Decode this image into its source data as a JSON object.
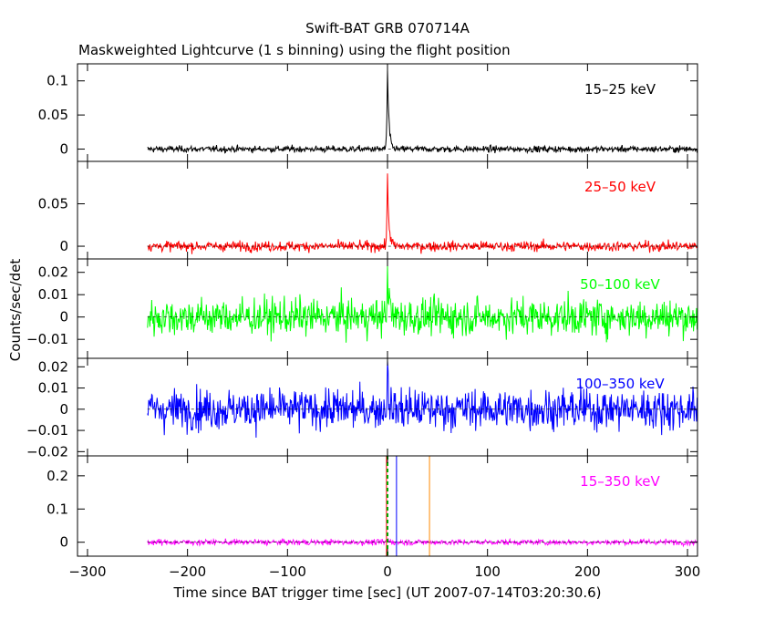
{
  "chart_data": {
    "type": "line",
    "title": "Swift-BAT GRB 070714A",
    "subtitle": "Maskweighted Lightcurve (1 s binning) using the flight position",
    "xlabel": "Time since BAT trigger time [sec] (UT 2007-07-14T03:20:30.6)",
    "ylabel": "Counts/sec/det",
    "xlim": [
      -310,
      310
    ],
    "xticks": [
      -300,
      -200,
      -100,
      0,
      100,
      200,
      300
    ],
    "xtick_labels": [
      "−300",
      "−200",
      "−100",
      "0",
      "100",
      "200",
      "300"
    ],
    "data_start": -240,
    "data_end": 310,
    "grid": false,
    "panels": [
      {
        "band": "15–25 keV",
        "color": "#000000",
        "ylim": [
          -0.018,
          0.125
        ],
        "yticks": [
          0,
          0.05,
          0.1
        ],
        "ytick_labels": [
          "0",
          "0.05",
          "0.1"
        ],
        "noise": 0.004,
        "peak": 0.12
      },
      {
        "band": "25–50 keV",
        "color": "#ff0000",
        "ylim": [
          -0.015,
          0.1
        ],
        "yticks": [
          0,
          0.05
        ],
        "ytick_labels": [
          "0",
          "0.05"
        ],
        "noise": 0.005,
        "peak": 0.085
      },
      {
        "band": "50–100 keV",
        "color": "#00ff00",
        "ylim": [
          -0.0185,
          0.026
        ],
        "yticks": [
          -0.01,
          0,
          0.01,
          0.02
        ],
        "ytick_labels": [
          "−0.01",
          "0",
          "0.01",
          "0.02"
        ],
        "noise": 0.007,
        "peak": 0.022
      },
      {
        "band": "100–350 keV",
        "color": "#0000ff",
        "ylim": [
          -0.022,
          0.024
        ],
        "yticks": [
          -0.02,
          -0.01,
          0,
          0.01,
          0.02
        ],
        "ytick_labels": [
          "−0.02",
          "−0.01",
          "0",
          "0.01",
          "0.02"
        ],
        "noise": 0.008,
        "peak": 0.02
      },
      {
        "band": "15–350 keV",
        "color": "#ff00ff",
        "ylim": [
          -0.042,
          0.26
        ],
        "yticks": [
          0,
          0.1,
          0.2
        ],
        "ytick_labels": [
          "0",
          "0.1",
          "0.2"
        ],
        "noise": 0.007,
        "peak": 0.01,
        "markers": [
          {
            "x": -1,
            "color": "#ff0000",
            "dashed": false
          },
          {
            "x": 0,
            "color": "#00aa00",
            "dashed": true
          },
          {
            "x": 9,
            "color": "#0000ff",
            "dashed": false
          },
          {
            "x": 42,
            "color": "#ff8800",
            "dashed": false
          }
        ]
      }
    ]
  }
}
